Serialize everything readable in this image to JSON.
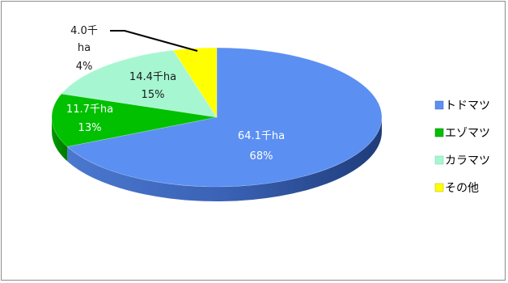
{
  "chart_data": {
    "type": "pie",
    "title": "",
    "unit": "千ha",
    "categories": [
      "トドマツ",
      "エゾマツ",
      "カラマツ",
      "その他"
    ],
    "values": [
      64.1,
      11.7,
      14.4,
      4.0
    ],
    "percent": [
      68,
      13,
      15,
      4
    ],
    "labels": [
      {
        "value": "64.1千ha",
        "percent": "68%"
      },
      {
        "value": "11.7千ha",
        "percent": "13%"
      },
      {
        "value": "14.4千ha",
        "percent": "15%"
      },
      {
        "value_line1": "4.0千",
        "value_line2": "ha",
        "percent": "4%"
      }
    ],
    "colors": [
      "#5b8ff2",
      "#00c000",
      "#a6f7d1",
      "#ffff00"
    ],
    "legend_position": "right",
    "legend": [
      "トドマツ",
      "エゾマツ",
      "カラマツ",
      "その他"
    ]
  }
}
